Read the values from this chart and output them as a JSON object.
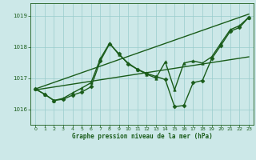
{
  "title": "Graphe pression niveau de la mer (hPa)",
  "background_color": "#cce8e8",
  "grid_color": "#99cccc",
  "line_color": "#1a5c1a",
  "xlim": [
    -0.5,
    23.5
  ],
  "ylim": [
    1015.5,
    1019.4
  ],
  "yticks": [
    1016,
    1017,
    1018,
    1019
  ],
  "xticks": [
    0,
    1,
    2,
    3,
    4,
    5,
    6,
    7,
    8,
    9,
    10,
    11,
    12,
    13,
    14,
    15,
    16,
    17,
    18,
    19,
    20,
    21,
    22,
    23
  ],
  "series": [
    {
      "x": [
        0,
        23
      ],
      "y": [
        1016.65,
        1019.05
      ],
      "marker": null,
      "lw": 1.0
    },
    {
      "x": [
        0,
        1,
        2,
        3,
        4,
        5,
        6,
        7,
        8,
        9,
        10,
        11,
        12,
        13,
        14,
        15,
        16,
        17,
        18,
        19,
        20,
        21,
        22,
        23
      ],
      "y": [
        1016.65,
        1016.48,
        1016.28,
        1016.32,
        1016.45,
        1016.55,
        1016.72,
        1017.55,
        1018.1,
        1017.78,
        1017.45,
        1017.28,
        1017.15,
        1017.05,
        1016.95,
        1016.08,
        1016.12,
        1016.85,
        1016.92,
        1017.62,
        1018.05,
        1018.5,
        1018.62,
        1018.95
      ],
      "marker": "D",
      "lw": 1.0
    },
    {
      "x": [
        0,
        1,
        2,
        3,
        4,
        5,
        6,
        7,
        8,
        9,
        10,
        11,
        12,
        13,
        14,
        15,
        16,
        17,
        18,
        19,
        20,
        21,
        22,
        23
      ],
      "y": [
        1016.65,
        1016.48,
        1016.28,
        1016.35,
        1016.52,
        1016.68,
        1016.85,
        1017.62,
        1018.12,
        1017.75,
        1017.48,
        1017.28,
        1017.12,
        1017.0,
        1017.52,
        1016.62,
        1017.48,
        1017.55,
        1017.48,
        1017.68,
        1018.12,
        1018.55,
        1018.68,
        1018.95
      ],
      "marker": "^",
      "lw": 1.0
    },
    {
      "x": [
        0,
        23
      ],
      "y": [
        1016.62,
        1017.68
      ],
      "marker": null,
      "lw": 1.0
    }
  ]
}
